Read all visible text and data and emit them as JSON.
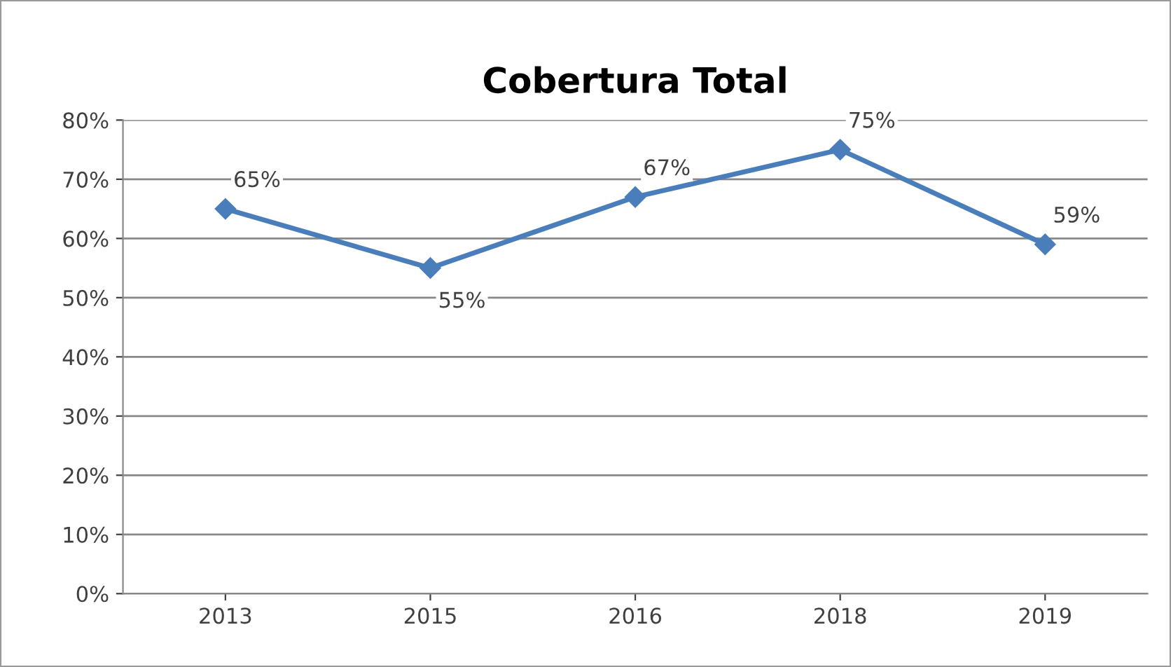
{
  "chart_data": {
    "type": "line",
    "title": "Cobertura Total",
    "categories": [
      "2013",
      "2015",
      "2016",
      "2018",
      "2019"
    ],
    "series": [
      {
        "color": "#4a7ebb",
        "values": [
          65,
          55,
          67,
          75,
          59
        ],
        "value_labels": [
          "65%",
          "55%",
          "67%",
          "75%",
          "59%"
        ]
      }
    ],
    "ylim": [
      0,
      80
    ],
    "yticks": [
      {
        "value": 0,
        "label": "0%"
      },
      {
        "value": 10,
        "label": "10%"
      },
      {
        "value": 20,
        "label": "20%"
      },
      {
        "value": 30,
        "label": "30%"
      },
      {
        "value": 40,
        "label": "40%"
      },
      {
        "value": 50,
        "label": "50%"
      },
      {
        "value": 60,
        "label": "60%"
      },
      {
        "value": 70,
        "label": "70%"
      },
      {
        "value": 80,
        "label": "80%"
      }
    ],
    "grid": "y",
    "marker": "diamond",
    "line_style": "solid",
    "legend": false
  }
}
